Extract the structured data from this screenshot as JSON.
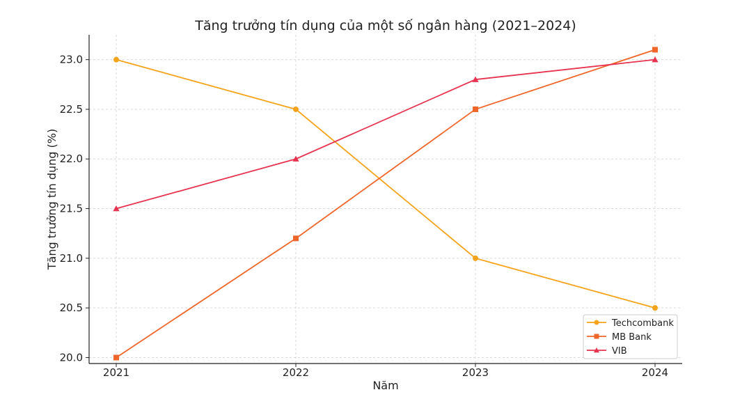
{
  "chart_data": {
    "type": "line",
    "title": "Tăng trưởng tín dụng của một số ngân hàng (2021–2024)",
    "xlabel": "Năm",
    "ylabel": "Tăng trưởng tín dụng (%)",
    "categories": [
      "2021",
      "2022",
      "2023",
      "2024"
    ],
    "ylim": [
      19.94,
      23.25
    ],
    "yticks": [
      20.0,
      20.5,
      21.0,
      21.5,
      22.0,
      22.5,
      23.0
    ],
    "ytick_labels": [
      "20.0",
      "20.5",
      "21.0",
      "21.5",
      "22.0",
      "22.5",
      "23.0"
    ],
    "grid": true,
    "legend_position": "bottom-right",
    "series": [
      {
        "name": "Techcombank",
        "values": [
          23.0,
          22.5,
          21.0,
          20.5
        ],
        "color": "#f5a31a",
        "marker": "circle"
      },
      {
        "name": "MB Bank",
        "values": [
          20.0,
          21.2,
          22.5,
          23.1
        ],
        "color": "#f0662a",
        "marker": "square"
      },
      {
        "name": "VIB",
        "values": [
          21.5,
          22.0,
          22.8,
          23.0
        ],
        "color": "#e8334f",
        "marker": "triangle"
      }
    ]
  }
}
